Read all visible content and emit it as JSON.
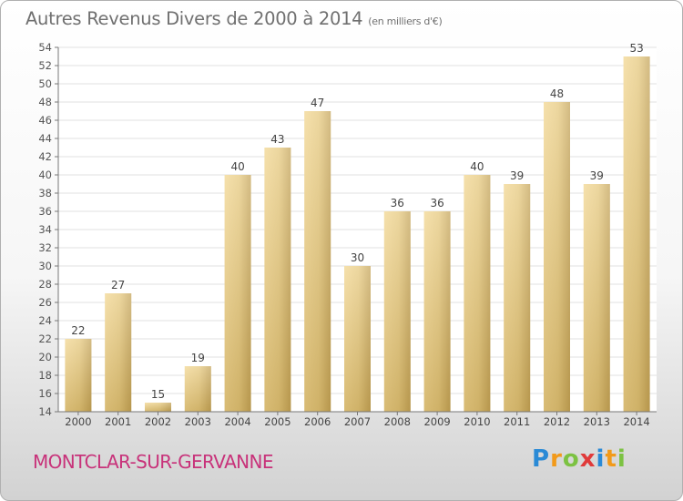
{
  "title": "Autres Revenus Divers de 2000 à 2014",
  "title_unit": "(en milliers d'€)",
  "footer": {
    "commune": "MONTCLAR-SUR-GERVANNE"
  },
  "logo": {
    "letters": [
      {
        "char": "P",
        "color": "#2a8ad6"
      },
      {
        "char": "r",
        "color": "#f29a1a"
      },
      {
        "char": "o",
        "color": "#7cc242"
      },
      {
        "char": "x",
        "color": "#e03a3a"
      },
      {
        "char": "i",
        "color": "#2a8ad6"
      },
      {
        "char": "t",
        "color": "#f29a1a"
      },
      {
        "char": "i",
        "color": "#7cc242"
      }
    ]
  },
  "chart_data": {
    "type": "bar",
    "categories": [
      "2000",
      "2001",
      "2002",
      "2003",
      "2004",
      "2005",
      "2006",
      "2007",
      "2008",
      "2009",
      "2010",
      "2011",
      "2012",
      "2013",
      "2014"
    ],
    "values": [
      22,
      27,
      15,
      19,
      40,
      43,
      47,
      30,
      36,
      36,
      40,
      39,
      48,
      39,
      53
    ],
    "ylim": [
      14,
      54
    ],
    "yticks": [
      14,
      16,
      18,
      20,
      22,
      24,
      26,
      28,
      30,
      32,
      34,
      36,
      38,
      40,
      42,
      44,
      46,
      48,
      50,
      52,
      54
    ],
    "grid": true,
    "data_labels": true,
    "bar_color": "#e8cc82"
  }
}
